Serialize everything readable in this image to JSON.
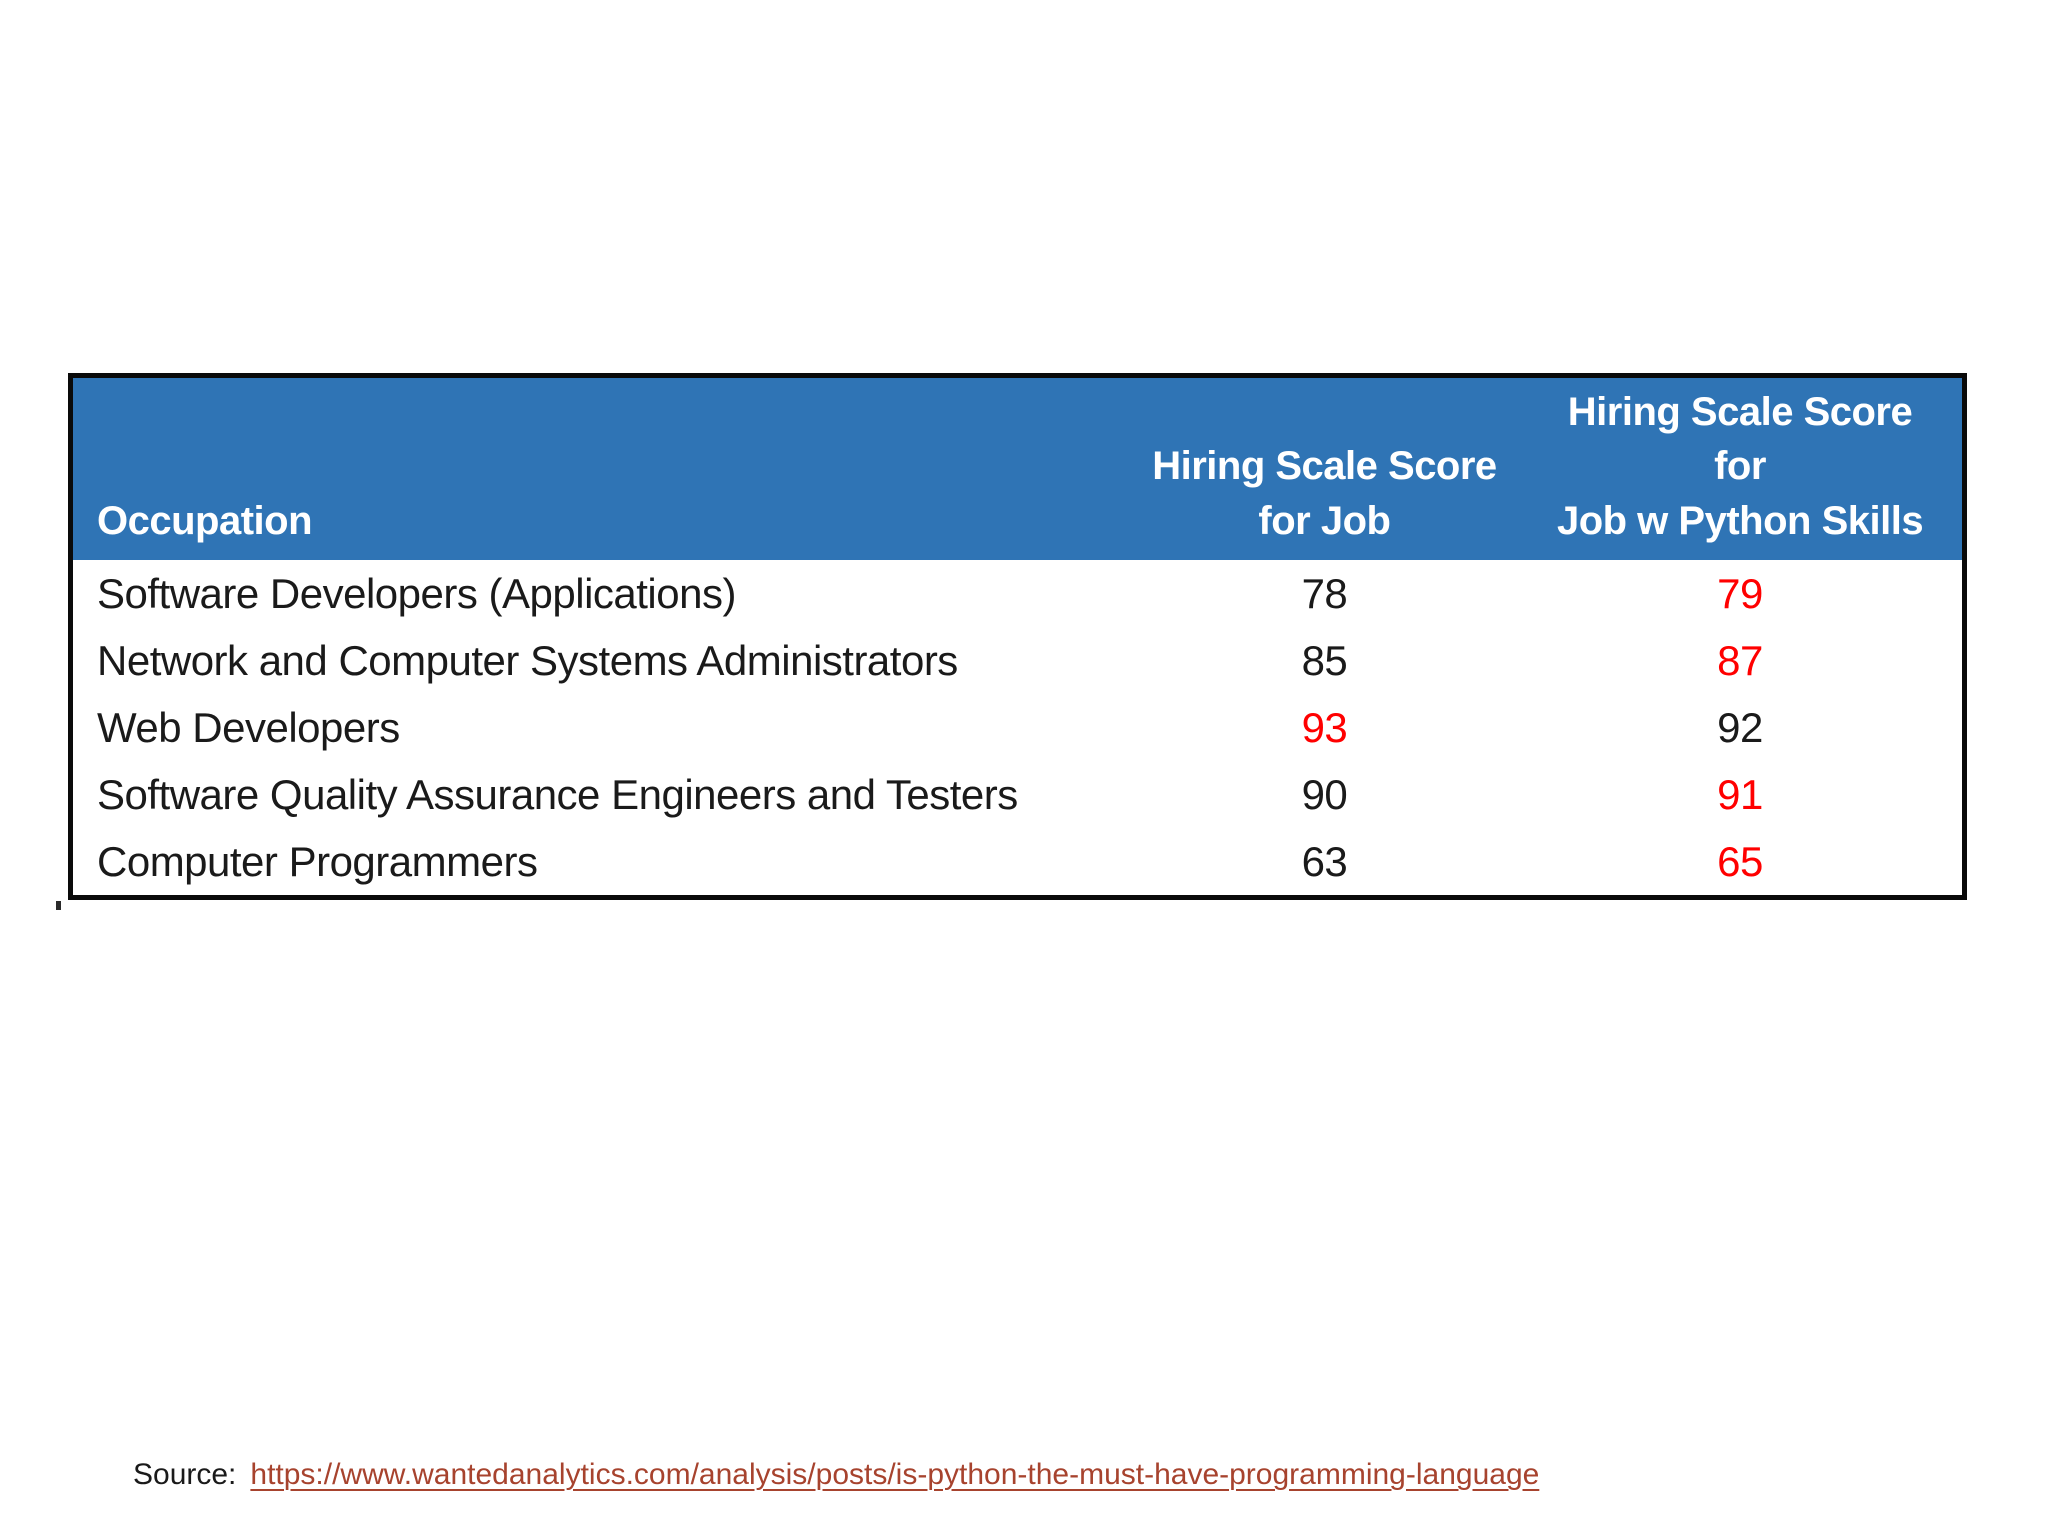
{
  "table": {
    "header": {
      "bg_color": "#2F74B5",
      "text_color": "#FFFFFF",
      "occupation": "Occupation",
      "col2_line1": "Hiring Scale Score",
      "col2_line2": "for Job",
      "col3_line1": "Hiring Scale Score",
      "col3_line2": "for",
      "col3_line3": "Job w Python Skills"
    },
    "normal_color": "#1A1A1A",
    "highlight_color": "#FF0000",
    "rows": [
      {
        "occupation": "Software Developers (Applications)",
        "score_job": "78",
        "score_job_color": "#1A1A1A",
        "score_python": "79",
        "score_python_color": "#FF0000"
      },
      {
        "occupation": "Network and Computer Systems Administrators",
        "score_job": "85",
        "score_job_color": "#1A1A1A",
        "score_python": "87",
        "score_python_color": "#FF0000"
      },
      {
        "occupation": "Web Developers",
        "score_job": "93",
        "score_job_color": "#FF0000",
        "score_python": "92",
        "score_python_color": "#1A1A1A"
      },
      {
        "occupation": "Software Quality Assurance Engineers and Testers",
        "score_job": "90",
        "score_job_color": "#1A1A1A",
        "score_python": "91",
        "score_python_color": "#FF0000"
      },
      {
        "occupation": "Computer Programmers",
        "score_job": "63",
        "score_job_color": "#1A1A1A",
        "score_python": "65",
        "score_python_color": "#FF0000"
      }
    ]
  },
  "source": {
    "label": "Source:",
    "url": "https://www.wantedanalytics.com/analysis/posts/is-python-the-must-have-programming-language"
  },
  "chart_data": {
    "type": "table",
    "title": "",
    "columns": [
      "Occupation",
      "Hiring Scale Score for Job",
      "Hiring Scale Score for Job w Python Skills"
    ],
    "rows": [
      [
        "Software Developers (Applications)",
        78,
        79
      ],
      [
        "Network and Computer Systems Administrators",
        85,
        87
      ],
      [
        "Web Developers",
        93,
        92
      ],
      [
        "Software Quality Assurance Engineers and Testers",
        90,
        91
      ],
      [
        "Computer Programmers",
        63,
        65
      ]
    ],
    "highlighted_red_cells": [
      {
        "row": "Software Developers (Applications)",
        "column": "Hiring Scale Score for Job w Python Skills",
        "value": 79
      },
      {
        "row": "Network and Computer Systems Administrators",
        "column": "Hiring Scale Score for Job w Python Skills",
        "value": 87
      },
      {
        "row": "Web Developers",
        "column": "Hiring Scale Score for Job",
        "value": 93
      },
      {
        "row": "Software Quality Assurance Engineers and Testers",
        "column": "Hiring Scale Score for Job w Python Skills",
        "value": 91
      },
      {
        "row": "Computer Programmers",
        "column": "Hiring Scale Score for Job w Python Skills",
        "value": 65
      }
    ],
    "layout": {
      "header_bg": "#2F74B5",
      "header_text": "#FFFFFF",
      "border": "#0A0A0A",
      "gridlines": false
    }
  }
}
